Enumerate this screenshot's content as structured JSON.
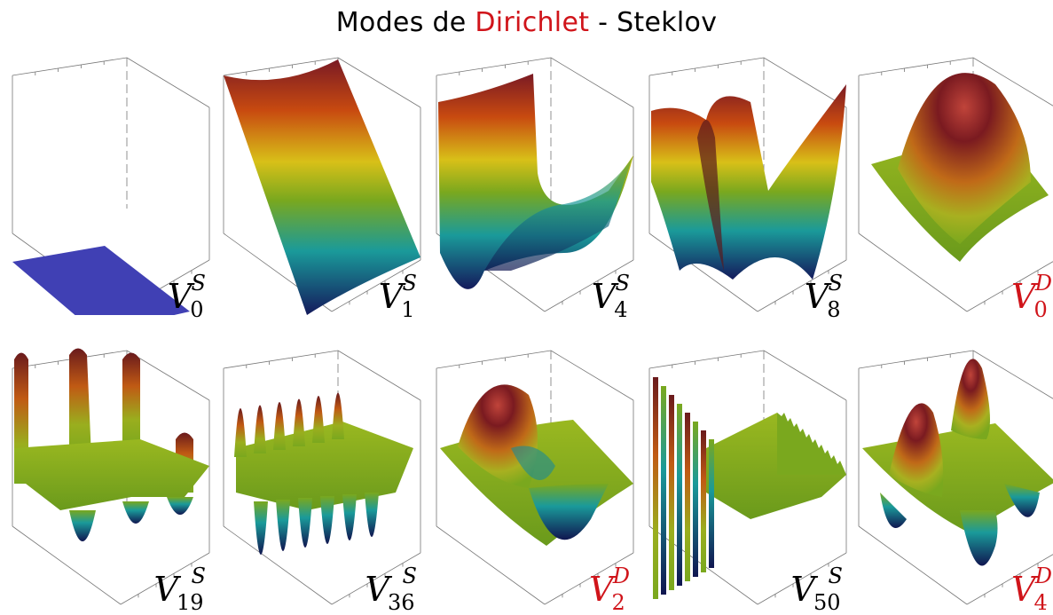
{
  "title": {
    "prefix": "Modes de ",
    "highlight": "Dirichlet",
    "suffix": " - Steklov"
  },
  "colors": {
    "highlight": "#d0141a",
    "flat_surface": "#4040b4",
    "axes": "#555555"
  },
  "panels": [
    {
      "base": "V",
      "sub": "0",
      "sup": "S",
      "highlighted": false,
      "surface": "flat"
    },
    {
      "base": "V",
      "sub": "1",
      "sup": "S",
      "highlighted": false,
      "surface": "ramp"
    },
    {
      "base": "V",
      "sub": "4",
      "sup": "S",
      "highlighted": false,
      "surface": "saddle"
    },
    {
      "base": "V",
      "sub": "8",
      "sup": "S",
      "highlighted": false,
      "surface": "saddle-multi"
    },
    {
      "base": "V",
      "sub": "0",
      "sup": "D",
      "highlighted": true,
      "surface": "bump"
    },
    {
      "base": "V",
      "sub": "19",
      "sup": "S",
      "highlighted": false,
      "surface": "edge-oscillation"
    },
    {
      "base": "V",
      "sub": "36",
      "sup": "S",
      "highlighted": false,
      "surface": "edge-oscillation-dense"
    },
    {
      "base": "V",
      "sub": "2",
      "sup": "D",
      "highlighted": true,
      "surface": "dipole"
    },
    {
      "base": "V",
      "sub": "50",
      "sup": "S",
      "highlighted": false,
      "surface": "edge-spikes"
    },
    {
      "base": "V",
      "sub": "4",
      "sup": "D",
      "highlighted": true,
      "surface": "quadrupole"
    }
  ]
}
